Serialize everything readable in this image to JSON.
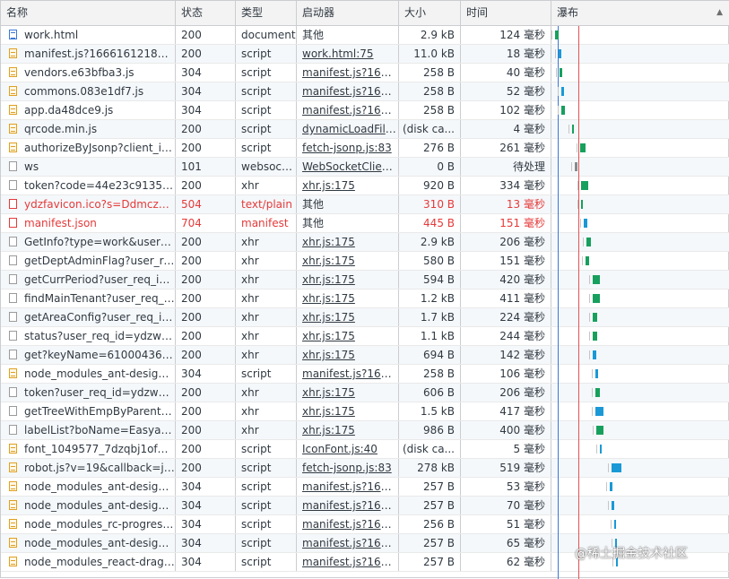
{
  "columns": [
    "名称",
    "状态",
    "类型",
    "启动器",
    "大小",
    "时间",
    "瀑布"
  ],
  "sort_indicator": "▲",
  "rows": [
    {
      "name": "work.html",
      "status": "200",
      "type": "document",
      "initiator": "其他",
      "size": "2.9 kB",
      "time": "124 毫秒",
      "icon": "document-icon",
      "link": false,
      "error": false
    },
    {
      "name": "manifest.js?1666161218122",
      "status": "200",
      "type": "script",
      "initiator": "work.html:75",
      "size": "11.0 kB",
      "time": "18 毫秒",
      "icon": "script-icon",
      "link": true,
      "error": false
    },
    {
      "name": "vendors.e63bfba3.js",
      "status": "304",
      "type": "script",
      "initiator": "manifest.js?1666...",
      "size": "258 B",
      "time": "40 毫秒",
      "icon": "script-icon",
      "link": true,
      "error": false
    },
    {
      "name": "commons.083e1df7.js",
      "status": "304",
      "type": "script",
      "initiator": "manifest.js?1666...",
      "size": "258 B",
      "time": "52 毫秒",
      "icon": "script-icon",
      "link": true,
      "error": false
    },
    {
      "name": "app.da48dce9.js",
      "status": "304",
      "type": "script",
      "initiator": "manifest.js?1666...",
      "size": "258 B",
      "time": "102 毫秒",
      "icon": "script-icon",
      "link": true,
      "error": false
    },
    {
      "name": "qrcode.min.js",
      "status": "200",
      "type": "script",
      "initiator": "dynamicLoadFile...",
      "size": "(disk ca...",
      "time": "4 毫秒",
      "icon": "script-icon",
      "link": true,
      "error": false
    },
    {
      "name": "authorizeByJsonp?client_id...",
      "status": "200",
      "type": "script",
      "initiator": "fetch-jsonp.js:83",
      "size": "276 B",
      "time": "261 毫秒",
      "icon": "script-icon",
      "link": true,
      "error": false
    },
    {
      "name": "ws",
      "status": "101",
      "type": "websocket",
      "initiator": "WebSocketClien...",
      "size": "0 B",
      "time": "待处理",
      "icon": "file-icon",
      "link": true,
      "error": false
    },
    {
      "name": "token?code=44e23c91358c...",
      "status": "200",
      "type": "xhr",
      "initiator": "xhr.js:175",
      "size": "920 B",
      "time": "334 毫秒",
      "icon": "file-icon",
      "link": true,
      "error": false
    },
    {
      "name": "ydzfavicon.ico?s=DdmczccVu",
      "status": "504",
      "type": "text/plain",
      "initiator": "其他",
      "size": "310 B",
      "time": "13 毫秒",
      "icon": "file-icon",
      "link": false,
      "error": true
    },
    {
      "name": "manifest.json",
      "status": "704",
      "type": "manifest",
      "initiator": "其他",
      "size": "445 B",
      "time": "151 毫秒",
      "icon": "file-icon",
      "link": false,
      "error": true
    },
    {
      "name": "GetInfo?type=work&user_re...",
      "status": "200",
      "type": "xhr",
      "initiator": "xhr.js:175",
      "size": "2.9 kB",
      "time": "206 毫秒",
      "icon": "file-icon",
      "link": true,
      "error": false
    },
    {
      "name": "getDeptAdminFlag?user_re...",
      "status": "200",
      "type": "xhr",
      "initiator": "xhr.js:175",
      "size": "580 B",
      "time": "151 毫秒",
      "icon": "file-icon",
      "link": true,
      "error": false
    },
    {
      "name": "getCurrPeriod?user_req_id=...",
      "status": "200",
      "type": "xhr",
      "initiator": "xhr.js:175",
      "size": "594 B",
      "time": "420 毫秒",
      "icon": "file-icon",
      "link": true,
      "error": false
    },
    {
      "name": "findMainTenant?user_req_id...",
      "status": "200",
      "type": "xhr",
      "initiator": "xhr.js:175",
      "size": "1.2 kB",
      "time": "411 毫秒",
      "icon": "file-icon",
      "link": true,
      "error": false
    },
    {
      "name": "getAreaConfig?user_req_id...",
      "status": "200",
      "type": "xhr",
      "initiator": "xhr.js:175",
      "size": "1.7 kB",
      "time": "224 毫秒",
      "icon": "file-icon",
      "link": true,
      "error": false
    },
    {
      "name": "status?user_req_id=ydzwor...",
      "status": "200",
      "type": "xhr",
      "initiator": "xhr.js:175",
      "size": "1.1 kB",
      "time": "244 毫秒",
      "icon": "file-icon",
      "link": true,
      "error": false
    },
    {
      "name": "get?keyName=6100043675...",
      "status": "200",
      "type": "xhr",
      "initiator": "xhr.js:175",
      "size": "694 B",
      "time": "142 毫秒",
      "icon": "file-icon",
      "link": true,
      "error": false
    },
    {
      "name": "node_modules_ant-design_i...",
      "status": "304",
      "type": "script",
      "initiator": "manifest.js?1666...",
      "size": "258 B",
      "time": "106 毫秒",
      "icon": "script-icon",
      "link": true,
      "error": false
    },
    {
      "name": "token?user_req_id=ydzwork...",
      "status": "200",
      "type": "xhr",
      "initiator": "xhr.js:175",
      "size": "606 B",
      "time": "206 毫秒",
      "icon": "file-icon",
      "link": true,
      "error": false
    },
    {
      "name": "getTreeWithEmpByParentId...",
      "status": "200",
      "type": "xhr",
      "initiator": "xhr.js:175",
      "size": "1.5 kB",
      "time": "417 毫秒",
      "icon": "file-icon",
      "link": true,
      "error": false
    },
    {
      "name": "labelList?boName=Easyacc...",
      "status": "200",
      "type": "xhr",
      "initiator": "xhr.js:175",
      "size": "986 B",
      "time": "400 毫秒",
      "icon": "file-icon",
      "link": true,
      "error": false
    },
    {
      "name": "font_1049577_7dzqbj1ofwd.js",
      "status": "200",
      "type": "script",
      "initiator": "IconFont.js:40",
      "size": "(disk ca...",
      "time": "5 毫秒",
      "icon": "script-icon",
      "link": true,
      "error": false
    },
    {
      "name": "robot.js?v=19&callback=jso...",
      "status": "200",
      "type": "script",
      "initiator": "fetch-jsonp.js:83",
      "size": "278 kB",
      "time": "519 毫秒",
      "icon": "script-icon",
      "link": true,
      "error": false
    },
    {
      "name": "node_modules_ant-design_i...",
      "status": "304",
      "type": "script",
      "initiator": "manifest.js?1666...",
      "size": "257 B",
      "time": "53 毫秒",
      "icon": "script-icon",
      "link": true,
      "error": false
    },
    {
      "name": "node_modules_ant-design_i...",
      "status": "304",
      "type": "script",
      "initiator": "manifest.js?1666...",
      "size": "257 B",
      "time": "70 毫秒",
      "icon": "script-icon",
      "link": true,
      "error": false
    },
    {
      "name": "node_modules_rc-progress...",
      "status": "304",
      "type": "script",
      "initiator": "manifest.js?1666...",
      "size": "256 B",
      "time": "51 毫秒",
      "icon": "script-icon",
      "link": true,
      "error": false
    },
    {
      "name": "node_modules_ant-design_i...",
      "status": "304",
      "type": "script",
      "initiator": "manifest.js?1666...",
      "size": "257 B",
      "time": "65 毫秒",
      "icon": "script-icon",
      "link": true,
      "error": false
    },
    {
      "name": "node_modules_react-dragg...",
      "status": "304",
      "type": "script",
      "initiator": "manifest.js?1666...",
      "size": "257 B",
      "time": "62 毫秒",
      "icon": "script-icon",
      "link": true,
      "error": false
    }
  ],
  "colors": {
    "error": "#e53a3a",
    "bar_green": "#17a05d",
    "bar_blue": "#1a99d6",
    "dom_line": "#3b78d6",
    "load_line": "#e05252"
  },
  "watermark": "@稀土掘金技术社区"
}
